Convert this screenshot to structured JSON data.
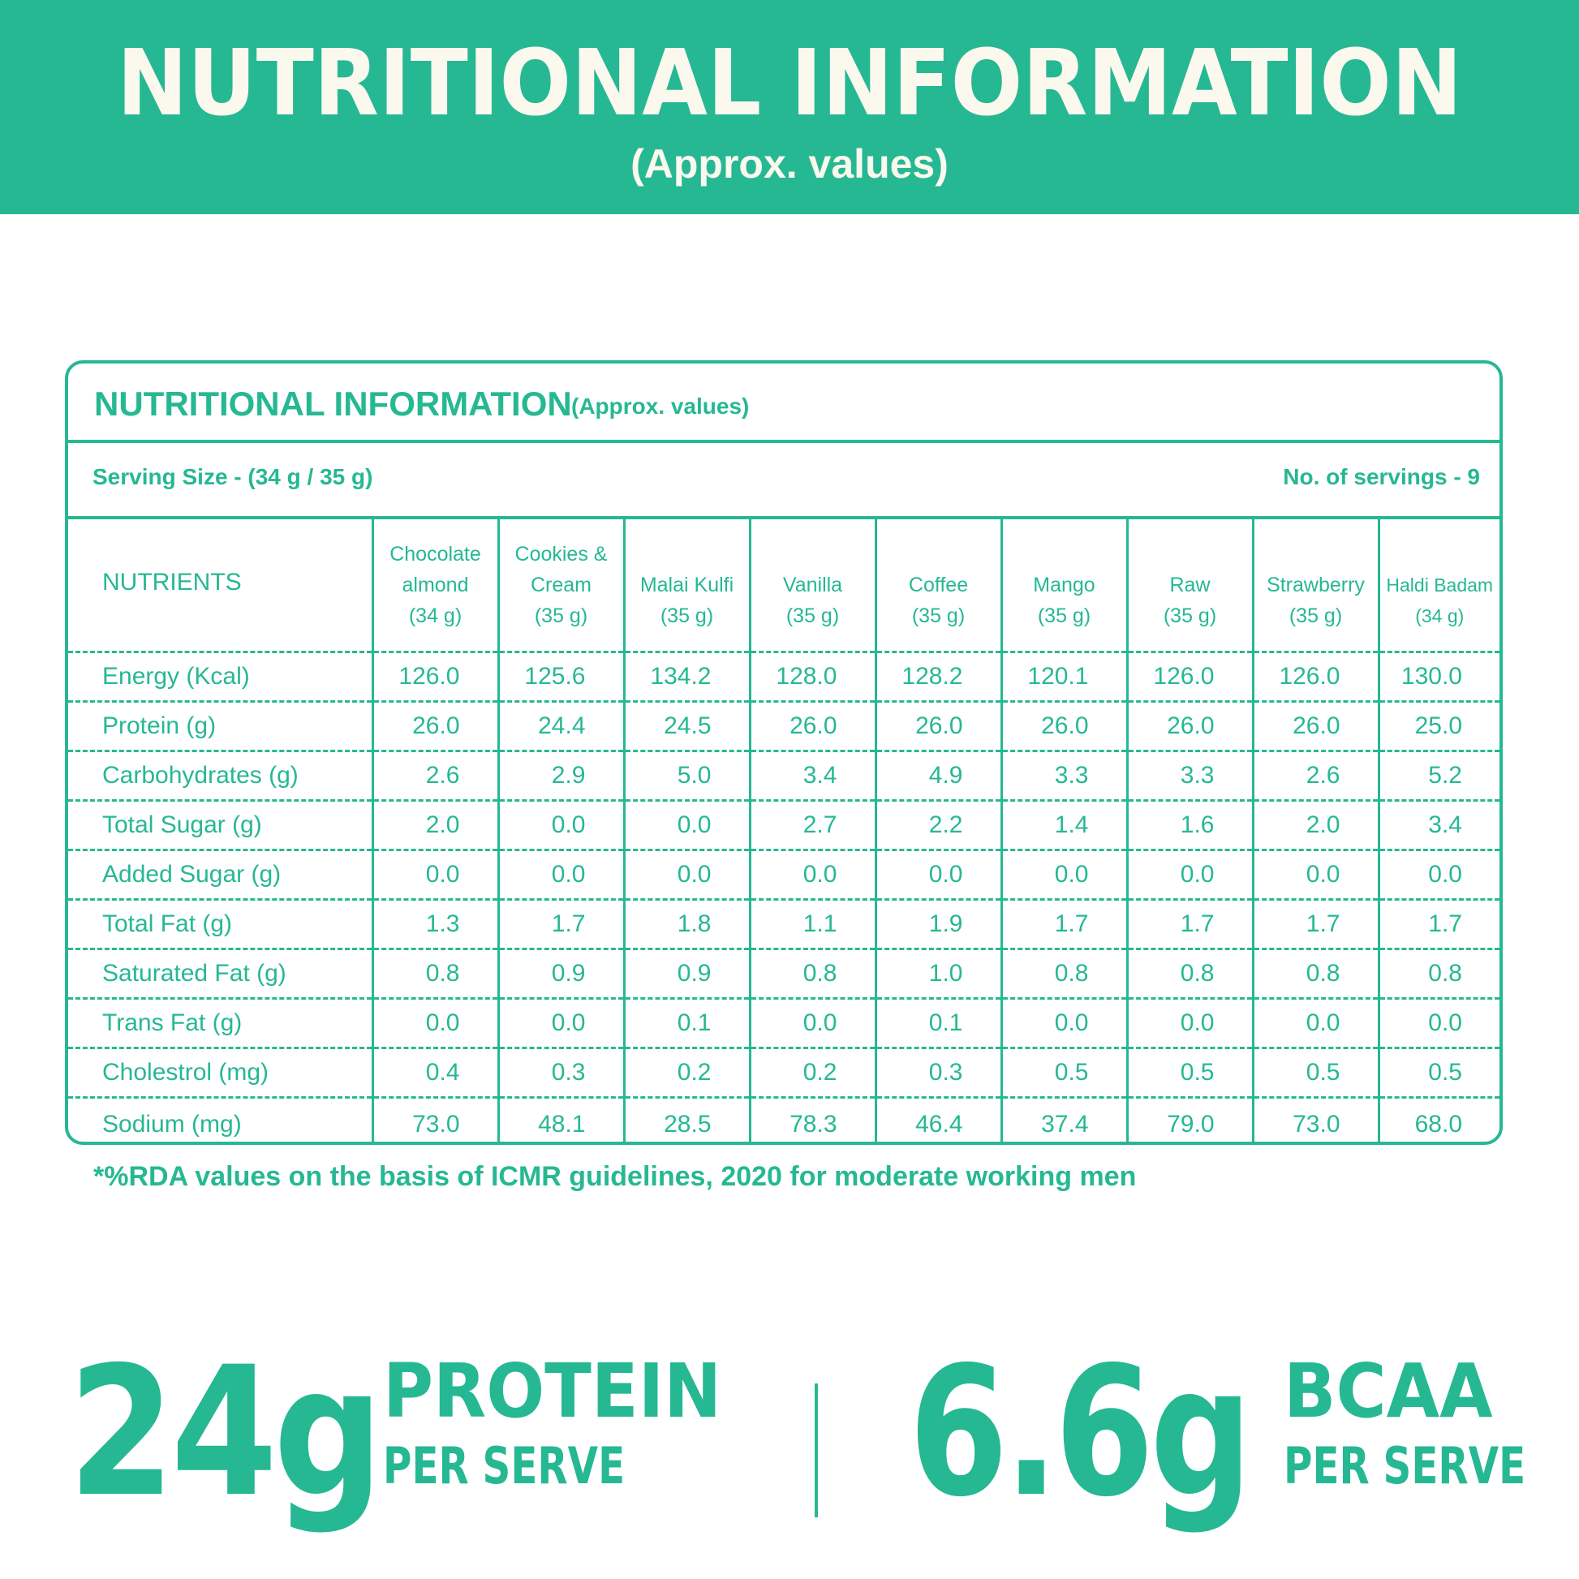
{
  "banner": {
    "title": "NUTRITIONAL INFORMATION",
    "subtitle": "(Approx. values)"
  },
  "panel": {
    "title": "NUTRITIONAL INFORMATION",
    "subtitle": "(Approx. values)",
    "serving_size": "Serving Size - (34 g / 35 g)",
    "servings": "No. of servings - 9"
  },
  "table": {
    "nutrients_header": "NUTRIENTS",
    "columns": [
      {
        "name_line1": "Chocolate",
        "name_line2": "almond",
        "weight": "(34 g)"
      },
      {
        "name_line1": "Cookies &",
        "name_line2": "Cream",
        "weight": "(35 g)"
      },
      {
        "name_line1": "",
        "name_line2": "Malai Kulfi",
        "weight": "(35 g)"
      },
      {
        "name_line1": "",
        "name_line2": "Vanilla",
        "weight": "(35 g)"
      },
      {
        "name_line1": "",
        "name_line2": "Coffee",
        "weight": "(35 g)"
      },
      {
        "name_line1": "",
        "name_line2": "Mango",
        "weight": "(35 g)"
      },
      {
        "name_line1": "",
        "name_line2": "Raw",
        "weight": "(35 g)"
      },
      {
        "name_line1": "",
        "name_line2": "Strawberry",
        "weight": "(35 g)"
      },
      {
        "name_line1": "",
        "name_line2": "Haldi Badam",
        "weight": "(34 g)"
      }
    ],
    "rows": [
      {
        "nutrient": "Energy (Kcal)",
        "values": [
          "126.0",
          "125.6",
          "134.2",
          "128.0",
          "128.2",
          "120.1",
          "126.0",
          "126.0",
          "130.0"
        ]
      },
      {
        "nutrient": "Protein (g)",
        "values": [
          "26.0",
          "24.4",
          "24.5",
          "26.0",
          "26.0",
          "26.0",
          "26.0",
          "26.0",
          "25.0"
        ]
      },
      {
        "nutrient": "Carbohydrates (g)",
        "values": [
          "2.6",
          "2.9",
          "5.0",
          "3.4",
          "4.9",
          "3.3",
          "3.3",
          "2.6",
          "5.2"
        ]
      },
      {
        "nutrient": "Total Sugar (g)",
        "values": [
          "2.0",
          "0.0",
          "0.0",
          "2.7",
          "2.2",
          "1.4",
          "1.6",
          "2.0",
          "3.4"
        ]
      },
      {
        "nutrient": "Added Sugar (g)",
        "values": [
          "0.0",
          "0.0",
          "0.0",
          "0.0",
          "0.0",
          "0.0",
          "0.0",
          "0.0",
          "0.0"
        ]
      },
      {
        "nutrient": "Total Fat (g)",
        "values": [
          "1.3",
          "1.7",
          "1.8",
          "1.1",
          "1.9",
          "1.7",
          "1.7",
          "1.7",
          "1.7"
        ]
      },
      {
        "nutrient": "Saturated Fat (g)",
        "values": [
          "0.8",
          "0.9",
          "0.9",
          "0.8",
          "1.0",
          "0.8",
          "0.8",
          "0.8",
          "0.8"
        ]
      },
      {
        "nutrient": "Trans Fat (g)",
        "values": [
          "0.0",
          "0.0",
          "0.1",
          "0.0",
          "0.1",
          "0.0",
          "0.0",
          "0.0",
          "0.0"
        ]
      },
      {
        "nutrient": "Cholestrol (mg)",
        "values": [
          "0.4",
          "0.3",
          "0.2",
          "0.2",
          "0.3",
          "0.5",
          "0.5",
          "0.5",
          "0.5"
        ]
      },
      {
        "nutrient": "Sodium (mg)",
        "values": [
          "73.0",
          "48.1",
          "28.5",
          "78.3",
          "46.4",
          "37.4",
          "79.0",
          "73.0",
          "68.0"
        ]
      }
    ]
  },
  "footnote": "*%RDA values on the basis of ICMR guidelines, 2020 for moderate working men",
  "stats": {
    "protein": {
      "amount": "24g",
      "label": "PROTEIN",
      "sub": "PER SERVE"
    },
    "bcaa": {
      "amount": "6.6g",
      "label": "BCAA",
      "sub": "PER SERVE"
    }
  },
  "colors": {
    "brand": "#26b893",
    "banner_text": "#fbf8ee",
    "background": "#ffffff"
  }
}
